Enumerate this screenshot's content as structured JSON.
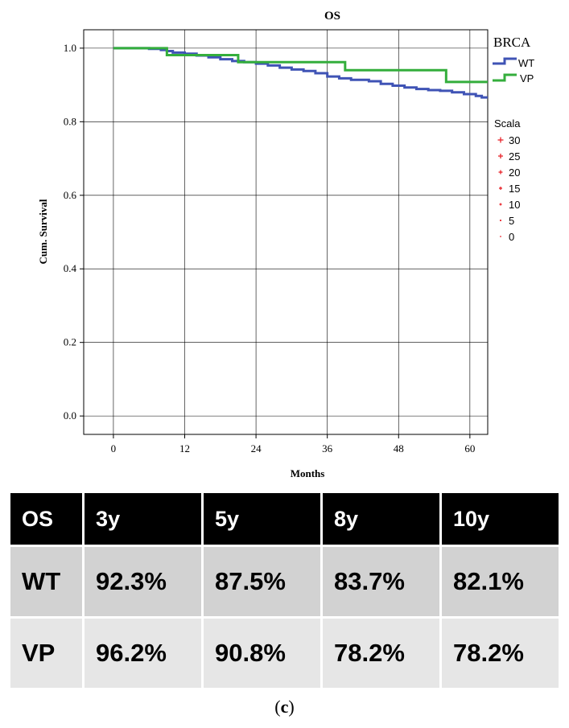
{
  "chart_data": {
    "type": "line",
    "title": "OS",
    "xlabel": "Months",
    "ylabel": "Cum. Survival",
    "xlim": [
      -5,
      63
    ],
    "ylim": [
      -0.05,
      1.05
    ],
    "x_ticks": [
      0,
      12,
      24,
      36,
      48,
      60
    ],
    "y_ticks": [
      0.0,
      0.2,
      0.4,
      0.6,
      0.8,
      1.0
    ],
    "grid": true,
    "legend_title": "BRCA",
    "legend_placement": "right",
    "series": [
      {
        "name": "WT",
        "color": "#3f53b5",
        "step": true,
        "points": [
          [
            0,
            1.0
          ],
          [
            6,
            0.998
          ],
          [
            8,
            0.995
          ],
          [
            9,
            0.992
          ],
          [
            10,
            0.988
          ],
          [
            12,
            0.985
          ],
          [
            14,
            0.98
          ],
          [
            16,
            0.975
          ],
          [
            18,
            0.97
          ],
          [
            20,
            0.965
          ],
          [
            22,
            0.962
          ],
          [
            24,
            0.958
          ],
          [
            26,
            0.953
          ],
          [
            28,
            0.947
          ],
          [
            30,
            0.942
          ],
          [
            32,
            0.938
          ],
          [
            34,
            0.932
          ],
          [
            36,
            0.923
          ],
          [
            38,
            0.918
          ],
          [
            40,
            0.914
          ],
          [
            43,
            0.91
          ],
          [
            45,
            0.903
          ],
          [
            47,
            0.898
          ],
          [
            49,
            0.893
          ],
          [
            51,
            0.889
          ],
          [
            53,
            0.886
          ],
          [
            55,
            0.884
          ],
          [
            57,
            0.88
          ],
          [
            59,
            0.875
          ],
          [
            61,
            0.87
          ],
          [
            62,
            0.866
          ],
          [
            63,
            0.866
          ]
        ]
      },
      {
        "name": "VP",
        "color": "#34ae3c",
        "step": true,
        "points": [
          [
            0,
            1.0
          ],
          [
            9,
            0.981
          ],
          [
            21,
            0.962
          ],
          [
            39,
            0.94
          ],
          [
            56,
            0.908
          ],
          [
            63,
            0.908
          ]
        ]
      }
    ],
    "censor_legend": {
      "title": "Scala",
      "color": "#e8242a",
      "items": [
        "30",
        "25",
        "20",
        "15",
        "10",
        "5",
        "0"
      ]
    }
  },
  "table": {
    "header": [
      "OS",
      "3y",
      "5y",
      "8y",
      "10y"
    ],
    "rows": [
      [
        "WT",
        "92.3%",
        "87.5%",
        "83.7%",
        "82.1%"
      ],
      [
        "VP",
        "96.2%",
        "90.8%",
        "78.2%",
        "78.2%"
      ]
    ]
  },
  "caption": {
    "open": "(",
    "letter": "c",
    "close": ")"
  }
}
